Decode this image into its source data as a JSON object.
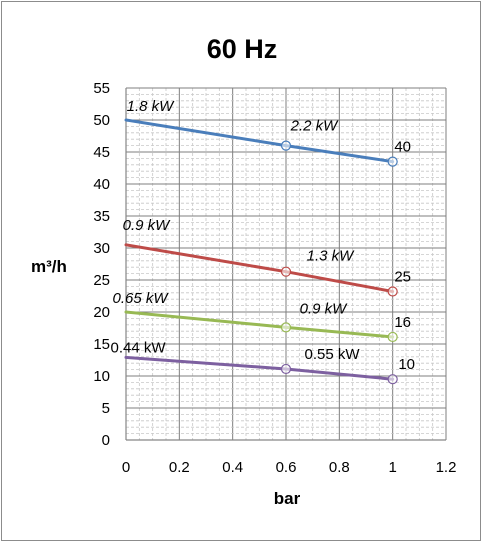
{
  "chart_data": {
    "type": "line",
    "title": "60 Hz",
    "xlabel": "bar",
    "ylabel": "m³/h",
    "xlim": [
      0,
      1.2
    ],
    "ylim": [
      0,
      55
    ],
    "x_ticks": [
      "0",
      "0.2",
      "0.4",
      "0.6",
      "0.8",
      "1",
      "1.2"
    ],
    "y_ticks": [
      "0",
      "5",
      "10",
      "15",
      "20",
      "25",
      "30",
      "35",
      "40",
      "45",
      "50",
      "55"
    ],
    "grid": true,
    "legend": "none",
    "series": [
      {
        "color": "#4a7ebb",
        "points": [
          [
            0,
            50
          ],
          [
            0.6,
            46
          ],
          [
            1,
            43.5
          ]
        ],
        "labels": [
          {
            "x": 0,
            "text": "1.8 kW"
          },
          {
            "x": 0.6,
            "text": "2.2 kW"
          },
          {
            "x": 1,
            "text": "40"
          }
        ]
      },
      {
        "color": "#be4b48",
        "points": [
          [
            0,
            30.5
          ],
          [
            0.6,
            26.3
          ],
          [
            1,
            23.2
          ]
        ],
        "labels": [
          {
            "x": 0,
            "text": "0.9 kW"
          },
          {
            "x": 0.6,
            "text": "1.3 kW"
          },
          {
            "x": 1,
            "text": "25"
          }
        ]
      },
      {
        "color": "#98b954",
        "points": [
          [
            0,
            20
          ],
          [
            0.6,
            17.6
          ],
          [
            1,
            16.1
          ]
        ],
        "labels": [
          {
            "x": 0,
            "text": "0.65 kW"
          },
          {
            "x": 0.6,
            "text": "0.9 kW"
          },
          {
            "x": 1,
            "text": "16"
          }
        ]
      },
      {
        "color": "#7d60a0",
        "points": [
          [
            0,
            12.9
          ],
          [
            0.6,
            11.1
          ],
          [
            1,
            9.5
          ]
        ],
        "labels": [
          {
            "x": 0,
            "text": "0.44 kW"
          },
          {
            "x": 0.6,
            "text": "0.55 kW"
          },
          {
            "x": 1,
            "text": "10"
          }
        ]
      }
    ]
  }
}
